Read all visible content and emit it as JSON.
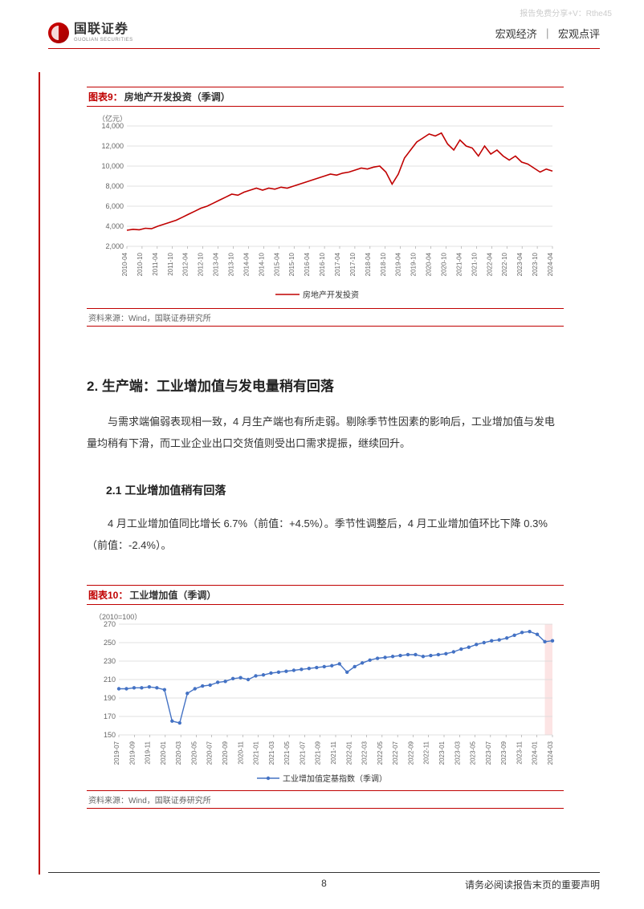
{
  "watermark": "报告免费分享+V：Rthe45",
  "header": {
    "logo_cn": "国联证券",
    "logo_en": "GUOLIAN SECURITIES",
    "category1": "宏观经济",
    "category2": "宏观点评"
  },
  "chart9": {
    "type": "line",
    "title_prefix": "图表9：",
    "title_text": "房地产开发投资（季调）",
    "y_unit": "（亿元）",
    "legend": "房地产开发投资",
    "source": "资料来源：Wind，国联证券研究所",
    "line_color": "#c00000",
    "grid_color": "#d9d9d9",
    "ylim": [
      2000,
      14000
    ],
    "ytick_step": 2000,
    "yticks": [
      "2,000",
      "4,000",
      "6,000",
      "8,000",
      "10,000",
      "12,000",
      "14,000"
    ],
    "xticks": [
      "2010-04",
      "2010-10",
      "2011-04",
      "2011-10",
      "2012-04",
      "2012-10",
      "2013-04",
      "2013-10",
      "2014-04",
      "2014-10",
      "2015-04",
      "2015-10",
      "2016-04",
      "2016-10",
      "2017-04",
      "2017-10",
      "2018-04",
      "2018-10",
      "2019-04",
      "2019-10",
      "2020-04",
      "2020-10",
      "2021-04",
      "2021-10",
      "2022-04",
      "2022-10",
      "2023-04",
      "2023-10",
      "2024-04"
    ],
    "values": [
      3600,
      3700,
      3650,
      3800,
      3750,
      4000,
      4200,
      4400,
      4600,
      4900,
      5200,
      5500,
      5800,
      6000,
      6300,
      6600,
      6900,
      7200,
      7100,
      7400,
      7600,
      7800,
      7600,
      7800,
      7700,
      7900,
      7800,
      8000,
      8200,
      8400,
      8600,
      8800,
      9000,
      9200,
      9100,
      9300,
      9400,
      9600,
      9800,
      9700,
      9900,
      10000,
      9400,
      8200,
      9200,
      10800,
      11600,
      12400,
      12800,
      13200,
      13000,
      13300,
      12200,
      11600,
      12600,
      12000,
      11800,
      11000,
      12000,
      11200,
      11600,
      11000,
      10600,
      11000,
      10400,
      10200,
      9800,
      9400,
      9700,
      9500
    ]
  },
  "section2": {
    "heading": "2. 生产端：工业增加值与发电量稍有回落",
    "para": "与需求端偏弱表现相一致，4 月生产端也有所走弱。剔除季节性因素的影响后，工业增加值与发电量均稍有下滑，而工业企业出口交货值则受出口需求提振，继续回升。"
  },
  "section21": {
    "heading": "2.1 工业增加值稍有回落",
    "para": "4 月工业增加值同比增长 6.7%（前值：+4.5%）。季节性调整后，4 月工业增加值环比下降 0.3%（前值：-2.4%）。"
  },
  "chart10": {
    "type": "line",
    "title_prefix": "图表10：",
    "title_text": "工业增加值（季调）",
    "y_unit": "（2010=100）",
    "legend": "工业增加值定基指数（季调）",
    "source": "资料来源：Wind，国联证券研究所",
    "line_color": "#4472c4",
    "marker_color": "#4472c4",
    "grid_color": "#d9d9d9",
    "highlight_color": "#fce4e4",
    "ylim": [
      150,
      270
    ],
    "ytick_step": 20,
    "yticks": [
      "150",
      "170",
      "190",
      "210",
      "230",
      "250",
      "270"
    ],
    "xticks": [
      "2019-07",
      "2019-09",
      "2019-11",
      "2020-01",
      "2020-03",
      "2020-05",
      "2020-07",
      "2020-09",
      "2020-11",
      "2021-01",
      "2021-03",
      "2021-05",
      "2021-07",
      "2021-09",
      "2021-11",
      "2022-01",
      "2022-03",
      "2022-05",
      "2022-07",
      "2022-09",
      "2022-11",
      "2023-01",
      "2023-03",
      "2023-05",
      "2023-07",
      "2023-09",
      "2023-11",
      "2024-01",
      "2024-03"
    ],
    "values": [
      200,
      200,
      201,
      201,
      202,
      201,
      199,
      165,
      163,
      195,
      200,
      203,
      204,
      207,
      208,
      211,
      212,
      210,
      214,
      215,
      217,
      218,
      219,
      220,
      221,
      222,
      223,
      224,
      225,
      227,
      218,
      224,
      228,
      231,
      233,
      234,
      235,
      236,
      237,
      237,
      235,
      236,
      237,
      238,
      240,
      243,
      245,
      248,
      250,
      252,
      253,
      255,
      258,
      261,
      262,
      259,
      251,
      252
    ]
  },
  "footer": {
    "page": "8",
    "disclaimer": "请务必阅读报告末页的重要声明"
  }
}
